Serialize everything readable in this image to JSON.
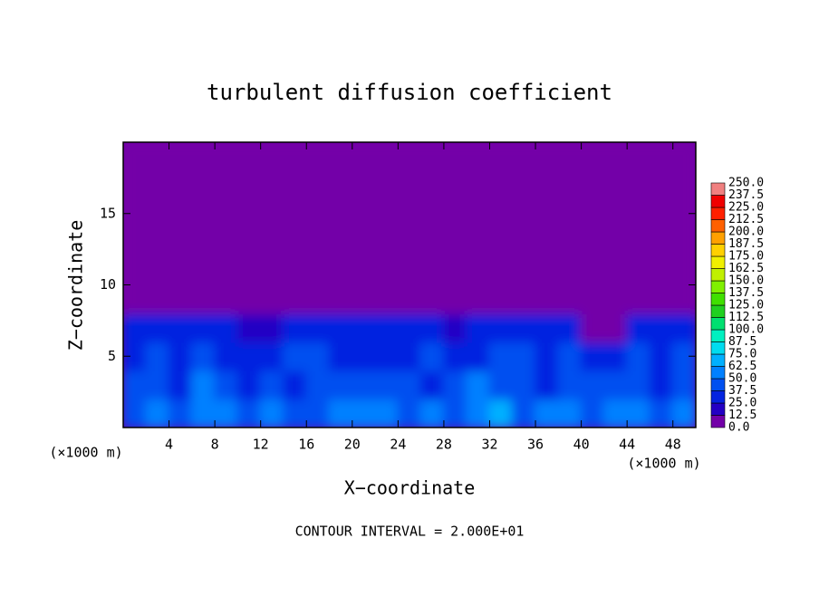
{
  "chart_data": {
    "type": "heatmap",
    "title": "turbulent diffusion coefficient",
    "xlabel": "X−coordinate",
    "ylabel": "Z−coordinate",
    "x_unit_left": "(×1000 m)",
    "x_unit_right": "(×1000 m)",
    "footer": "CONTOUR INTERVAL = 2.000E+01",
    "xlim": [
      0,
      50
    ],
    "ylim": [
      0,
      20
    ],
    "xticks": [
      4,
      8,
      12,
      16,
      20,
      24,
      28,
      32,
      36,
      40,
      44,
      48
    ],
    "yticks": [
      5,
      10,
      15
    ],
    "x": [
      1,
      3,
      5,
      7,
      9,
      11,
      13,
      15,
      17,
      19,
      21,
      23,
      25,
      27,
      29,
      31,
      33,
      35,
      37,
      39,
      41,
      43,
      45,
      47,
      49
    ],
    "z": [
      1,
      3,
      5,
      7,
      9,
      11,
      13,
      15,
      17,
      19
    ],
    "values": [
      [
        45,
        50,
        40,
        55,
        50,
        45,
        60,
        40,
        45,
        50,
        55,
        60,
        45,
        50,
        40,
        55,
        65,
        45,
        50,
        55,
        45,
        50,
        60,
        45,
        55
      ],
      [
        40,
        45,
        35,
        50,
        40,
        35,
        40,
        35,
        40,
        45,
        40,
        45,
        40,
        35,
        40,
        50,
        45,
        40,
        35,
        45,
        40,
        45,
        40,
        35,
        45
      ],
      [
        35,
        40,
        30,
        45,
        35,
        30,
        35,
        40,
        45,
        35,
        30,
        30,
        35,
        40,
        30,
        35,
        40,
        45,
        30,
        40,
        35,
        30,
        40,
        35,
        45
      ],
      [
        30,
        35,
        25,
        30,
        35,
        20,
        15,
        25,
        30,
        30,
        25,
        30,
        35,
        30,
        20,
        25,
        30,
        35,
        30,
        25,
        0,
        0,
        25,
        30,
        35
      ],
      [
        0,
        0,
        0,
        0,
        0,
        0,
        0,
        0,
        0,
        0,
        0,
        0,
        0,
        0,
        0,
        0,
        0,
        0,
        0,
        0,
        0,
        0,
        0,
        0,
        0
      ],
      [
        0,
        0,
        0,
        0,
        0,
        0,
        0,
        0,
        0,
        0,
        0,
        0,
        0,
        0,
        0,
        0,
        0,
        0,
        0,
        0,
        0,
        0,
        0,
        0,
        0
      ],
      [
        0,
        0,
        0,
        0,
        0,
        0,
        0,
        0,
        0,
        0,
        0,
        0,
        0,
        0,
        0,
        0,
        0,
        0,
        0,
        0,
        0,
        0,
        0,
        0,
        0
      ],
      [
        0,
        0,
        0,
        0,
        0,
        0,
        0,
        0,
        0,
        0,
        0,
        0,
        0,
        0,
        0,
        0,
        0,
        0,
        0,
        0,
        0,
        0,
        0,
        0,
        0
      ],
      [
        0,
        0,
        0,
        0,
        0,
        0,
        0,
        0,
        0,
        0,
        0,
        0,
        0,
        0,
        0,
        0,
        0,
        0,
        0,
        0,
        0,
        0,
        0,
        0,
        0
      ],
      [
        0,
        0,
        0,
        0,
        0,
        0,
        0,
        0,
        0,
        0,
        0,
        0,
        0,
        0,
        0,
        0,
        0,
        0,
        0,
        0,
        0,
        0,
        0,
        0,
        0
      ]
    ],
    "colorbar": {
      "levels": [
        {
          "value": 0,
          "label": "0.0"
        },
        {
          "value": 12.5,
          "label": "12.5"
        },
        {
          "value": 25,
          "label": "25.0"
        },
        {
          "value": 37.5,
          "label": "37.5"
        },
        {
          "value": 50,
          "label": "50.0"
        },
        {
          "value": 62.5,
          "label": "62.5"
        },
        {
          "value": 75,
          "label": "75.0"
        },
        {
          "value": 87.5,
          "label": "87.5"
        },
        {
          "value": 100,
          "label": "100.0"
        },
        {
          "value": 112.5,
          "label": "112.5"
        },
        {
          "value": 125,
          "label": "125.0"
        },
        {
          "value": 137.5,
          "label": "137.5"
        },
        {
          "value": 150,
          "label": "150.0"
        },
        {
          "value": 162.5,
          "label": "162.5"
        },
        {
          "value": 175,
          "label": "175.0"
        },
        {
          "value": 187.5,
          "label": "187.5"
        },
        {
          "value": 200,
          "label": "200.0"
        },
        {
          "value": 212.5,
          "label": "212.5"
        },
        {
          "value": 225,
          "label": "225.0"
        },
        {
          "value": 237.5,
          "label": "237.5"
        },
        {
          "value": 250,
          "label": "250.0"
        }
      ],
      "colors": [
        "#7300a8",
        "#2400c4",
        "#0424e0",
        "#0050f0",
        "#0080ff",
        "#00b0ff",
        "#00dcf0",
        "#00f0c0",
        "#00e070",
        "#20d020",
        "#40e000",
        "#80f000",
        "#c0f000",
        "#f0f000",
        "#ffd000",
        "#ffa000",
        "#ff6000",
        "#ff2000",
        "#f00000",
        "#f08080"
      ]
    }
  }
}
